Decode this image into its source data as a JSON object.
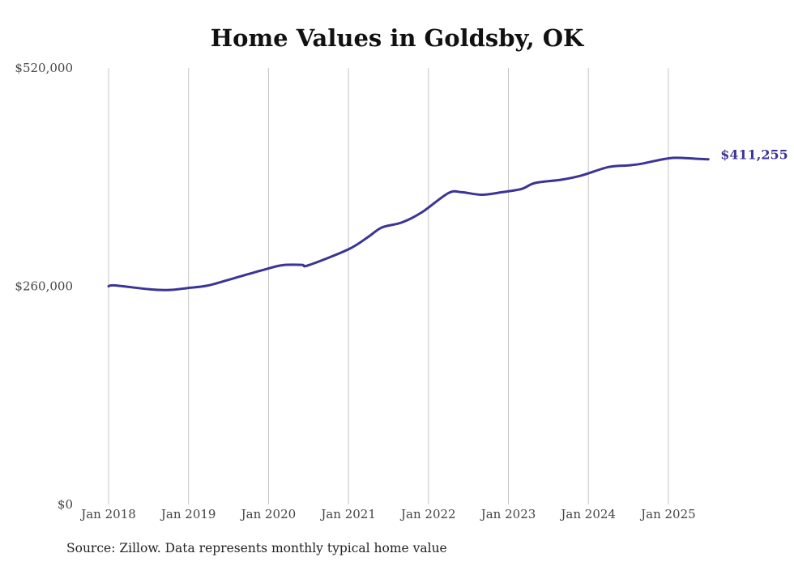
{
  "chart_data": {
    "type": "line",
    "title": "Home Values in Goldsby, OK",
    "xlabel": "",
    "ylabel": "",
    "ylim": [
      0,
      520000
    ],
    "yticks": [
      0,
      260000,
      520000
    ],
    "ytick_labels": [
      "$0",
      "$260,000",
      "$520,000"
    ],
    "xticks": [
      "Jan 2018",
      "Jan 2019",
      "Jan 2020",
      "Jan 2021",
      "Jan 2022",
      "Jan 2023",
      "Jan 2024",
      "Jan 2025"
    ],
    "grid": "vertical",
    "line_color": "#3b3496",
    "end_label": "$411,255",
    "series": [
      {
        "name": "Typical home value",
        "x": [
          "2018-01",
          "2018-02",
          "2018-07",
          "2018-10",
          "2019-01",
          "2019-04",
          "2019-08",
          "2019-12",
          "2020-03",
          "2020-06",
          "2020-07",
          "2021-01",
          "2021-04",
          "2021-06",
          "2021-09",
          "2021-12",
          "2022-04",
          "2022-06",
          "2022-09",
          "2022-12",
          "2023-03",
          "2023-05",
          "2023-09",
          "2023-12",
          "2024-04",
          "2024-07",
          "2024-09",
          "2024-12",
          "2025-02",
          "2025-05",
          "2025-07"
        ],
        "values": [
          260000,
          261000,
          256500,
          255500,
          258000,
          261000,
          270000,
          279000,
          285000,
          285500,
          285000,
          304000,
          319000,
          330000,
          336000,
          348000,
          371000,
          372000,
          369000,
          372000,
          376000,
          383000,
          387000,
          392000,
          402000,
          404000,
          406000,
          411000,
          413000,
          412000,
          411255
        ]
      }
    ]
  },
  "source": "Source: Zillow. Data represents monthly typical home value"
}
